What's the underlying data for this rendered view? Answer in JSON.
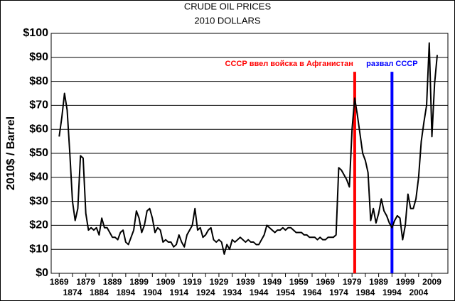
{
  "chart_data": {
    "type": "line",
    "title": "CRUDE OIL PRICES",
    "subtitle": "2010 DOLLARS",
    "y_label": "2010$ / Barrel",
    "grid": true,
    "xlim": [
      1866,
      2015
    ],
    "ylim": [
      0,
      100
    ],
    "xticks": [
      1869,
      1874,
      1879,
      1884,
      1889,
      1894,
      1899,
      1904,
      1909,
      1914,
      1919,
      1924,
      1929,
      1934,
      1939,
      1944,
      1949,
      1954,
      1959,
      1964,
      1969,
      1974,
      1979,
      1984,
      1989,
      1994,
      1999,
      2004,
      2009
    ],
    "yticks": [
      {
        "value": 0,
        "label": "$0"
      },
      {
        "value": 10,
        "label": "$10"
      },
      {
        "value": 20,
        "label": "$20"
      },
      {
        "value": 30,
        "label": "$30"
      },
      {
        "value": 40,
        "label": "$40"
      },
      {
        "value": 50,
        "label": "$50"
      },
      {
        "value": 60,
        "label": "$60"
      },
      {
        "value": 70,
        "label": "$70"
      },
      {
        "value": 80,
        "label": "$80"
      },
      {
        "value": 90,
        "label": "$90"
      },
      {
        "value": 100,
        "label": "$100"
      }
    ],
    "x": [
      1869,
      1870,
      1871,
      1872,
      1873,
      1874,
      1875,
      1876,
      1877,
      1878,
      1879,
      1880,
      1881,
      1882,
      1883,
      1884,
      1885,
      1886,
      1887,
      1888,
      1889,
      1890,
      1891,
      1892,
      1893,
      1894,
      1895,
      1896,
      1897,
      1898,
      1899,
      1900,
      1901,
      1902,
      1903,
      1904,
      1905,
      1906,
      1907,
      1908,
      1909,
      1910,
      1911,
      1912,
      1913,
      1914,
      1915,
      1916,
      1917,
      1918,
      1919,
      1920,
      1921,
      1922,
      1923,
      1924,
      1925,
      1926,
      1927,
      1928,
      1929,
      1930,
      1931,
      1932,
      1933,
      1934,
      1935,
      1936,
      1937,
      1938,
      1939,
      1940,
      1941,
      1942,
      1943,
      1944,
      1945,
      1946,
      1947,
      1948,
      1949,
      1950,
      1951,
      1952,
      1953,
      1954,
      1955,
      1956,
      1957,
      1958,
      1959,
      1960,
      1961,
      1962,
      1963,
      1964,
      1965,
      1966,
      1967,
      1968,
      1969,
      1970,
      1971,
      1972,
      1973,
      1974,
      1975,
      1976,
      1977,
      1978,
      1979,
      1980,
      1981,
      1982,
      1983,
      1984,
      1985,
      1986,
      1987,
      1988,
      1989,
      1990,
      1991,
      1992,
      1993,
      1994,
      1995,
      1996,
      1997,
      1998,
      1999,
      2000,
      2001,
      2002,
      2003,
      2004,
      2005,
      2006,
      2007,
      2008,
      2009,
      2010,
      2011
    ],
    "series": [
      {
        "name": "Crude oil price",
        "color": "#000000",
        "values": [
          57,
          65,
          75,
          68,
          50,
          30,
          22,
          27,
          49,
          48,
          25,
          18,
          19,
          18,
          19,
          16,
          23,
          19,
          19,
          17,
          15,
          15,
          14,
          17,
          18,
          13,
          12,
          15,
          18,
          26,
          23,
          17,
          20,
          26,
          27,
          23,
          17,
          19,
          18,
          13,
          14,
          13,
          13,
          11,
          12,
          16,
          13,
          11,
          16,
          18,
          20,
          27,
          18,
          19,
          15,
          16,
          18,
          19,
          14,
          13,
          14,
          13,
          8,
          12,
          10,
          14,
          13,
          14,
          15,
          14,
          13,
          14,
          13,
          13,
          12,
          12,
          14,
          16,
          20,
          19,
          18,
          17,
          18,
          18,
          19,
          18,
          19,
          19,
          18,
          17,
          17,
          17,
          16,
          16,
          15,
          15,
          15,
          14,
          15,
          14,
          14,
          15,
          15,
          15,
          16,
          44,
          43,
          41,
          39,
          36,
          60,
          73,
          66,
          58,
          50,
          47,
          42,
          22,
          27,
          21,
          25,
          31,
          26,
          24,
          21,
          19,
          22,
          24,
          23,
          14,
          20,
          33,
          27,
          27,
          31,
          40,
          55,
          63,
          70,
          96,
          57,
          79,
          91
        ]
      }
    ],
    "annotations": [
      {
        "text": "СССР ввел войска в Афганистан",
        "x": 1980,
        "y": 84,
        "color": "#ff0000"
      },
      {
        "text": "развал СССР",
        "x": 1994,
        "y": 84,
        "color": "#0000ff"
      }
    ]
  }
}
